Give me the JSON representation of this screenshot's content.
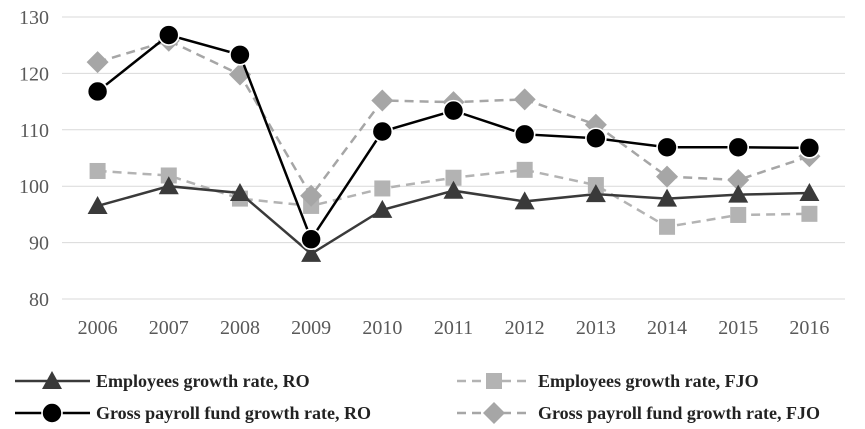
{
  "chart_data": {
    "type": "line",
    "title": "",
    "xlabel": "",
    "ylabel": "",
    "ylim": [
      80,
      130
    ],
    "yticks": [
      80,
      90,
      100,
      110,
      120,
      130
    ],
    "grid": "horizontal",
    "legend_position": "bottom",
    "categories": [
      "2006",
      "2007",
      "2008",
      "2009",
      "2010",
      "2011",
      "2012",
      "2013",
      "2014",
      "2015",
      "2016"
    ],
    "series": [
      {
        "name": "Employees growth rate, RO",
        "values": [
          96.5,
          100.0,
          98.8,
          88.0,
          95.8,
          99.2,
          97.3,
          98.6,
          97.8,
          98.5,
          98.8
        ],
        "color": "#3a3a3a",
        "dash": "solid",
        "marker": "triangle"
      },
      {
        "name": "Employees growth rate, FJO",
        "values": [
          102.7,
          101.9,
          97.8,
          96.5,
          99.6,
          101.5,
          102.9,
          100.2,
          92.8,
          94.9,
          95.1
        ],
        "color": "#b3b3b3",
        "dash": "dashed",
        "marker": "square"
      },
      {
        "name": "Gross payroll fund growth rate, RO",
        "values": [
          116.8,
          126.8,
          123.3,
          90.6,
          109.7,
          113.4,
          109.2,
          108.5,
          106.9,
          106.9,
          106.8
        ],
        "color": "#000000",
        "dash": "solid",
        "marker": "circle"
      },
      {
        "name": "Gross payroll fund growth rate, FJO",
        "values": [
          122.0,
          125.8,
          119.8,
          98.3,
          115.2,
          114.9,
          115.4,
          110.9,
          101.7,
          101.1,
          105.3
        ],
        "color": "#a6a6a6",
        "dash": "dashed",
        "marker": "diamond"
      }
    ]
  }
}
